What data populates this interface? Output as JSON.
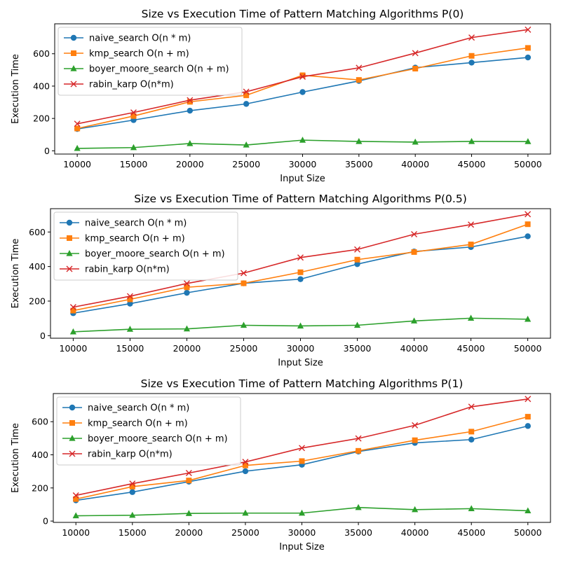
{
  "chart_data": [
    {
      "type": "line",
      "title": "Size vs Execution Time of Pattern Matching Algorithms P(0)",
      "xlabel": "Input Size",
      "ylabel": "Execution Time",
      "x": [
        10000,
        15000,
        20000,
        25000,
        30000,
        35000,
        40000,
        45000,
        50000
      ],
      "xlim": [
        8000,
        52000
      ],
      "ylim": [
        -20,
        785
      ],
      "yticks": [
        0,
        200,
        400,
        600
      ],
      "grid": false,
      "legend": "top-left",
      "series": [
        {
          "name": "naive_search O(n * m)",
          "color": "#1f77b4",
          "marker": "circle",
          "values": [
            135,
            190,
            248,
            290,
            363,
            432,
            514,
            545,
            577
          ]
        },
        {
          "name": "kmp_search O(n + m)",
          "color": "#ff7f0e",
          "marker": "square",
          "values": [
            138,
            215,
            303,
            343,
            467,
            438,
            508,
            587,
            636
          ]
        },
        {
          "name": "boyer_moore_search O(n + m)",
          "color": "#2ca02c",
          "marker": "triangle",
          "values": [
            15,
            20,
            45,
            36,
            66,
            58,
            54,
            58,
            57
          ]
        },
        {
          "name": "rabin_karp O(n*m)",
          "color": "#d62728",
          "marker": "x",
          "values": [
            167,
            237,
            313,
            365,
            458,
            513,
            604,
            700,
            749
          ]
        }
      ]
    },
    {
      "type": "line",
      "title": "Size vs Execution Time of Pattern Matching Algorithms P(0.5)",
      "xlabel": "Input Size",
      "ylabel": "Execution Time",
      "x": [
        10000,
        15000,
        20000,
        25000,
        30000,
        35000,
        40000,
        45000,
        50000
      ],
      "xlim": [
        8000,
        52000
      ],
      "ylim": [
        -15,
        735
      ],
      "yticks": [
        0,
        200,
        400,
        600
      ],
      "grid": false,
      "legend": "top-left",
      "series": [
        {
          "name": "naive_search O(n * m)",
          "color": "#1f77b4",
          "marker": "circle",
          "values": [
            130,
            185,
            248,
            303,
            327,
            414,
            487,
            513,
            575
          ]
        },
        {
          "name": "kmp_search O(n + m)",
          "color": "#ff7f0e",
          "marker": "square",
          "values": [
            145,
            210,
            280,
            303,
            367,
            440,
            484,
            528,
            645
          ]
        },
        {
          "name": "boyer_moore_search O(n + m)",
          "color": "#2ca02c",
          "marker": "triangle",
          "values": [
            22,
            37,
            39,
            60,
            56,
            60,
            85,
            101,
            95
          ]
        },
        {
          "name": "rabin_karp O(n*m)",
          "color": "#d62728",
          "marker": "x",
          "values": [
            165,
            228,
            302,
            362,
            452,
            499,
            587,
            643,
            703
          ]
        }
      ]
    },
    {
      "type": "line",
      "title": "Size vs Execution Time of Pattern Matching Algorithms P(1)",
      "xlabel": "Input Size",
      "ylabel": "Execution Time",
      "x": [
        10000,
        15000,
        20000,
        25000,
        30000,
        35000,
        40000,
        45000,
        50000
      ],
      "xlim": [
        8000,
        52000
      ],
      "ylim": [
        -8,
        770
      ],
      "yticks": [
        0,
        200,
        400,
        600
      ],
      "grid": false,
      "legend": "top-left",
      "series": [
        {
          "name": "naive_search O(n * m)",
          "color": "#1f77b4",
          "marker": "circle",
          "values": [
            125,
            175,
            238,
            301,
            340,
            420,
            472,
            492,
            574
          ]
        },
        {
          "name": "kmp_search O(n + m)",
          "color": "#ff7f0e",
          "marker": "square",
          "values": [
            133,
            208,
            245,
            336,
            362,
            424,
            488,
            540,
            630
          ]
        },
        {
          "name": "boyer_moore_search O(n + m)",
          "color": "#2ca02c",
          "marker": "triangle",
          "values": [
            32,
            35,
            46,
            48,
            48,
            82,
            69,
            75,
            62
          ]
        },
        {
          "name": "rabin_karp O(n*m)",
          "color": "#d62728",
          "marker": "x",
          "values": [
            155,
            226,
            290,
            357,
            441,
            499,
            578,
            690,
            737
          ]
        }
      ]
    }
  ]
}
